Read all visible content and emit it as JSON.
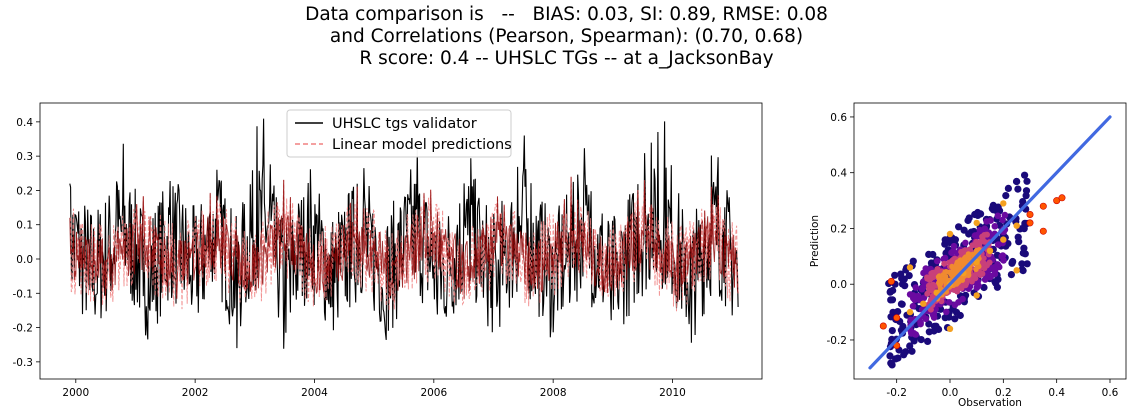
{
  "title": {
    "line1": "Data comparison is   --   BIAS: 0.03, SI: 0.89, RMSE: 0.08",
    "line2": "and Correlations (Pearson, Spearman): (0.70, 0.68)",
    "line3": "R score: 0.4 -- UHSLC TGs -- at a_JacksonBay"
  },
  "chart_data": [
    {
      "type": "line",
      "xlabel": "",
      "ylabel": "",
      "xlim": [
        1999.4,
        2011.5
      ],
      "ylim": [
        -0.35,
        0.455
      ],
      "x_ticks": [
        "2000",
        "2002",
        "2004",
        "2006",
        "2008",
        "2010"
      ],
      "y_ticks": [
        "-0.3",
        "-0.2",
        "-0.1",
        "0.0",
        "0.1",
        "0.2",
        "0.3",
        "0.4"
      ],
      "legend_position": "top-center",
      "series": [
        {
          "name": "UHSLC tgs validator",
          "color": "#000000",
          "style": "solid",
          "x": [
            1999.9,
            2000.3,
            2000.8,
            2001.2,
            2001.6,
            2002.0,
            2002.4,
            2002.7,
            2003.0,
            2003.2,
            2003.5,
            2003.9,
            2004.3,
            2004.8,
            2005.2,
            2005.7,
            2006.1,
            2006.6,
            2007.0,
            2007.5,
            2008.0,
            2008.5,
            2009.0,
            2009.5,
            2009.9,
            2010.3,
            2010.7,
            2011.1
          ],
          "values": [
            0.22,
            -0.15,
            0.34,
            -0.2,
            0.25,
            -0.14,
            0.3,
            -0.26,
            0.38,
            0.42,
            -0.3,
            0.3,
            -0.18,
            0.3,
            -0.2,
            0.36,
            -0.22,
            0.32,
            -0.2,
            0.38,
            -0.24,
            0.35,
            -0.21,
            0.3,
            0.41,
            -0.27,
            0.38,
            -0.14
          ]
        },
        {
          "name": "Linear model predictions",
          "color": "#f08080",
          "style": "dashed",
          "x": [
            1999.9,
            2000.5,
            2001.1,
            2001.7,
            2002.3,
            2002.9,
            2003.5,
            2004.1,
            2004.7,
            2005.3,
            2005.9,
            2006.5,
            2007.1,
            2007.7,
            2008.3,
            2008.9,
            2009.5,
            2010.1,
            2010.7,
            2011.1
          ],
          "values": [
            0.12,
            -0.1,
            0.2,
            -0.12,
            0.22,
            -0.11,
            0.24,
            -0.13,
            0.22,
            -0.12,
            0.23,
            -0.12,
            0.2,
            -0.11,
            0.24,
            -0.12,
            0.25,
            -0.13,
            0.24,
            -0.1
          ]
        }
      ]
    },
    {
      "type": "scatter",
      "xlabel": "Observation",
      "ylabel": "Prediction",
      "xlim": [
        -0.36,
        0.66
      ],
      "ylim": [
        -0.34,
        0.65
      ],
      "x_ticks": [
        "-0.2",
        "0.0",
        "0.2",
        "0.4",
        "0.6"
      ],
      "y_ticks": [
        "-0.2",
        "0.0",
        "0.2",
        "0.4",
        "0.6"
      ],
      "series": [
        {
          "name": "",
          "colormap": "plasma (density)",
          "points": [
            [
              -0.25,
              -0.15
            ],
            [
              -0.2,
              -0.12
            ],
            [
              -0.15,
              -0.1
            ],
            [
              -0.1,
              -0.07
            ],
            [
              -0.05,
              -0.03
            ],
            [
              0.0,
              0.0
            ],
            [
              0.05,
              0.04
            ],
            [
              0.1,
              0.08
            ],
            [
              0.15,
              0.12
            ],
            [
              0.2,
              0.16
            ],
            [
              0.25,
              0.21
            ],
            [
              0.3,
              0.25
            ],
            [
              0.35,
              0.28
            ],
            [
              0.4,
              0.3
            ],
            [
              0.42,
              0.31
            ],
            [
              -0.22,
              0.01
            ],
            [
              -0.15,
              0.06
            ],
            [
              0.0,
              0.18
            ],
            [
              0.1,
              0.22
            ],
            [
              0.2,
              0.29
            ],
            [
              0.3,
              0.22
            ],
            [
              0.35,
              0.19
            ],
            [
              -0.2,
              -0.22
            ],
            [
              0.0,
              -0.16
            ],
            [
              0.1,
              -0.04
            ],
            [
              0.25,
              0.05
            ]
          ]
        },
        {
          "name": "1:1 line",
          "color": "#4169e1",
          "x": [
            -0.3,
            0.6
          ],
          "values": [
            -0.3,
            0.6
          ]
        }
      ]
    }
  ]
}
